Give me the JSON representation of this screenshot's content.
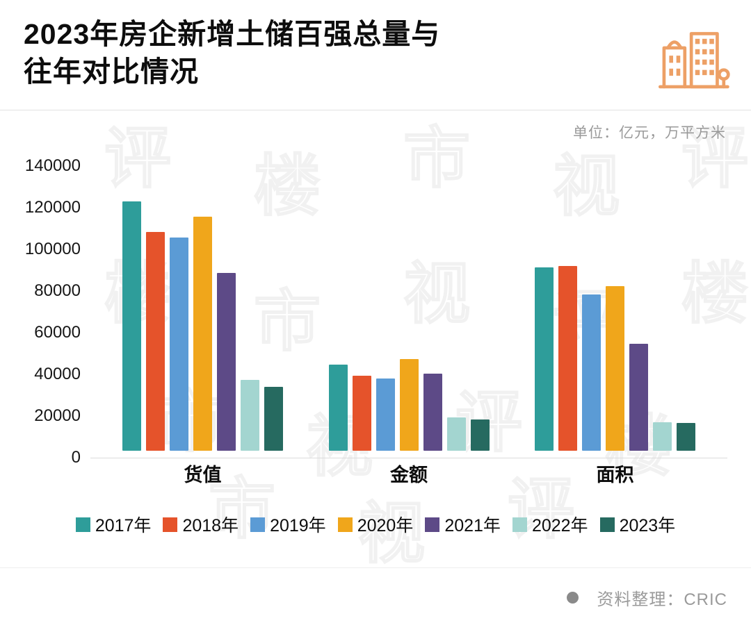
{
  "header": {
    "title_line1": "2023年房企新增土储百强总量与",
    "title_line2": "往年对比情况"
  },
  "unit_label": "单位：亿元，万平方米",
  "footer": {
    "source_label": "资料整理：CRIC"
  },
  "watermark": {
    "characters": [
      "评",
      "楼",
      "市",
      "视"
    ]
  },
  "chart_data": {
    "type": "bar",
    "title": "2023年房企新增土储百强总量与往年对比情况",
    "categories": [
      "货值",
      "金额",
      "面积"
    ],
    "series": [
      {
        "name": "2017年",
        "color": "#2E9D9A",
        "values": [
          122500,
          42500,
          90000
        ]
      },
      {
        "name": "2018年",
        "color": "#E5532B",
        "values": [
          107500,
          37000,
          91000
        ]
      },
      {
        "name": "2019年",
        "color": "#5B9BD5",
        "values": [
          105000,
          35500,
          77000
        ]
      },
      {
        "name": "2020年",
        "color": "#F0A61B",
        "values": [
          115000,
          45000,
          81000
        ]
      },
      {
        "name": "2021年",
        "color": "#5D4A87",
        "values": [
          87500,
          38000,
          52500
        ]
      },
      {
        "name": "2022年",
        "color": "#A3D5D0",
        "values": [
          35000,
          16500,
          14000
        ]
      },
      {
        "name": "2023年",
        "color": "#266A60",
        "values": [
          31500,
          15500,
          13500
        ]
      }
    ],
    "xlabel": "",
    "ylabel": "",
    "ylim": [
      0,
      140000
    ],
    "yticks": [
      0,
      20000,
      40000,
      60000,
      80000,
      100000,
      120000,
      140000
    ],
    "grid": false,
    "legend_position": "bottom",
    "unit": "亿元，万平方米"
  }
}
